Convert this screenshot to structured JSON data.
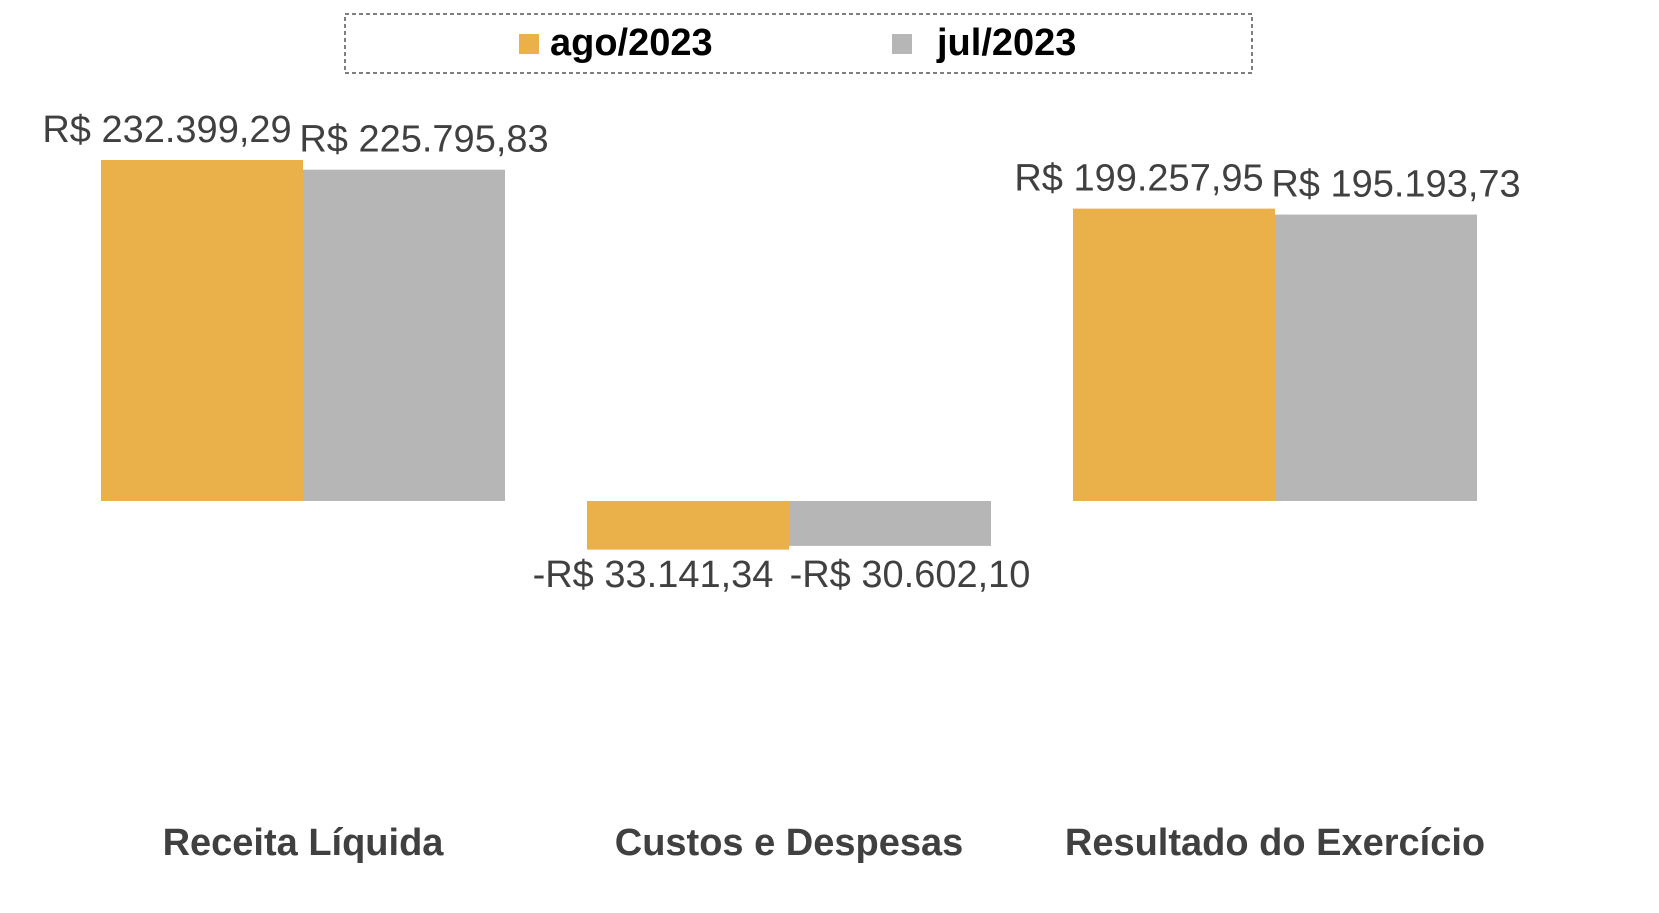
{
  "chart_data": {
    "type": "bar",
    "categories": [
      "Receita Líquida",
      "Custos e Despesas",
      "Resultado do Exercício"
    ],
    "series": [
      {
        "name": "ago/2023",
        "color": "#eab04a",
        "values": [
          232399.29,
          -33141.34,
          199257.95
        ],
        "value_labels": [
          "R$ 232.399,29",
          "-R$ 33.141,34",
          "R$ 199.257,95"
        ]
      },
      {
        "name": "jul/2023",
        "color": "#b6b6b6",
        "values": [
          225795.83,
          -30602.1,
          195193.73
        ],
        "value_labels": [
          "R$ 225.795,83",
          "-R$ 30.602,10",
          "R$ 195.193,73"
        ]
      }
    ],
    "legend": "top"
  }
}
